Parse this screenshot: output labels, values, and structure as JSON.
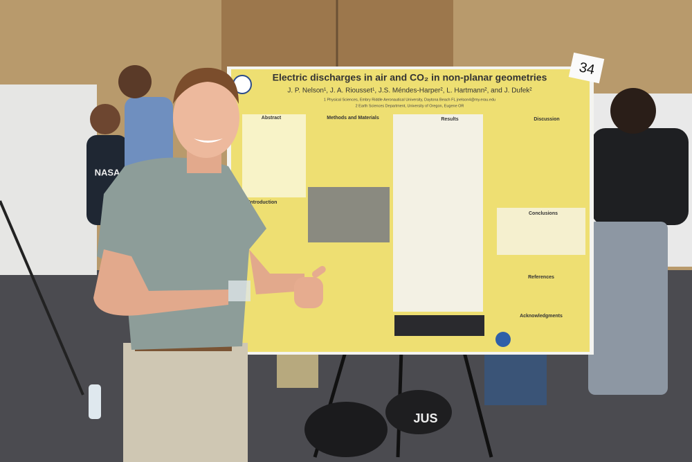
{
  "poster": {
    "title": "Electric discharges in air and CO₂ in non-planar geometries",
    "authors": "J. P. Nelson¹, J. A. Riousset¹, J.S. Méndes-Harper², L. Hartmann², and J. Dufek²",
    "affiliations": [
      "1 Physical Sciences, Embry Riddle Aeronautical University, Daytona Beach FL jnelson4@my.erau.edu",
      "2 Earth Sciences Department, University of Oregon, Eugene OR"
    ],
    "sections": [
      "Abstract",
      "Methods and Materials",
      "Results",
      "Discussion",
      "Introduction",
      "Conclusions",
      "References",
      "Acknowledgments"
    ],
    "number_card": "34"
  },
  "shirt_text": "NASA",
  "bag_text": "JUS"
}
